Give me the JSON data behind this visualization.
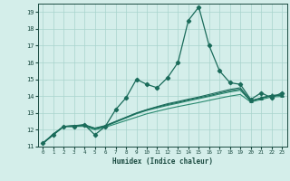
{
  "xlabel": "Humidex (Indice chaleur)",
  "x": [
    0,
    1,
    2,
    3,
    4,
    5,
    6,
    7,
    8,
    9,
    10,
    11,
    12,
    13,
    14,
    15,
    16,
    17,
    18,
    19,
    20,
    21,
    22,
    23
  ],
  "line1": [
    11.2,
    11.7,
    12.2,
    12.2,
    12.3,
    11.7,
    12.2,
    13.2,
    13.9,
    15.0,
    14.7,
    14.5,
    15.1,
    16.0,
    18.5,
    19.3,
    17.0,
    15.5,
    14.8,
    14.7,
    13.8,
    14.2,
    13.9,
    14.2
  ],
  "line2": [
    11.2,
    11.7,
    12.2,
    12.2,
    12.2,
    12.0,
    12.15,
    12.35,
    12.55,
    12.75,
    12.95,
    13.1,
    13.25,
    13.38,
    13.5,
    13.62,
    13.75,
    13.88,
    14.0,
    14.1,
    13.65,
    13.8,
    13.95,
    13.98
  ],
  "line3": [
    11.2,
    11.7,
    12.2,
    12.2,
    12.25,
    12.05,
    12.2,
    12.45,
    12.7,
    12.95,
    13.15,
    13.3,
    13.45,
    13.58,
    13.72,
    13.85,
    13.98,
    14.12,
    14.25,
    14.35,
    13.7,
    13.87,
    14.02,
    14.05
  ],
  "line4": [
    11.2,
    11.75,
    12.2,
    12.25,
    12.3,
    12.1,
    12.25,
    12.5,
    12.75,
    13.0,
    13.2,
    13.38,
    13.55,
    13.68,
    13.82,
    13.95,
    14.1,
    14.25,
    14.4,
    14.5,
    13.73,
    13.9,
    14.05,
    14.08
  ],
  "line5": [
    11.2,
    11.75,
    12.2,
    12.25,
    12.28,
    12.08,
    12.22,
    12.48,
    12.73,
    12.98,
    13.18,
    13.35,
    13.5,
    13.63,
    13.77,
    13.9,
    14.03,
    14.18,
    14.32,
    14.42,
    13.7,
    13.88,
    14.03,
    14.06
  ],
  "line_color_main": "#1a6b5a",
  "line_color_smooth": "#2a8a70",
  "bg_color": "#d4eeea",
  "grid_color": "#a8d4cc",
  "text_color": "#1a4a40",
  "ylim": [
    11.0,
    19.5
  ],
  "xlim": [
    -0.5,
    23.5
  ],
  "yticks": [
    11,
    12,
    13,
    14,
    15,
    16,
    17,
    18,
    19
  ],
  "xticks": [
    0,
    1,
    2,
    3,
    4,
    5,
    6,
    7,
    8,
    9,
    10,
    11,
    12,
    13,
    14,
    15,
    16,
    17,
    18,
    19,
    20,
    21,
    22,
    23
  ]
}
